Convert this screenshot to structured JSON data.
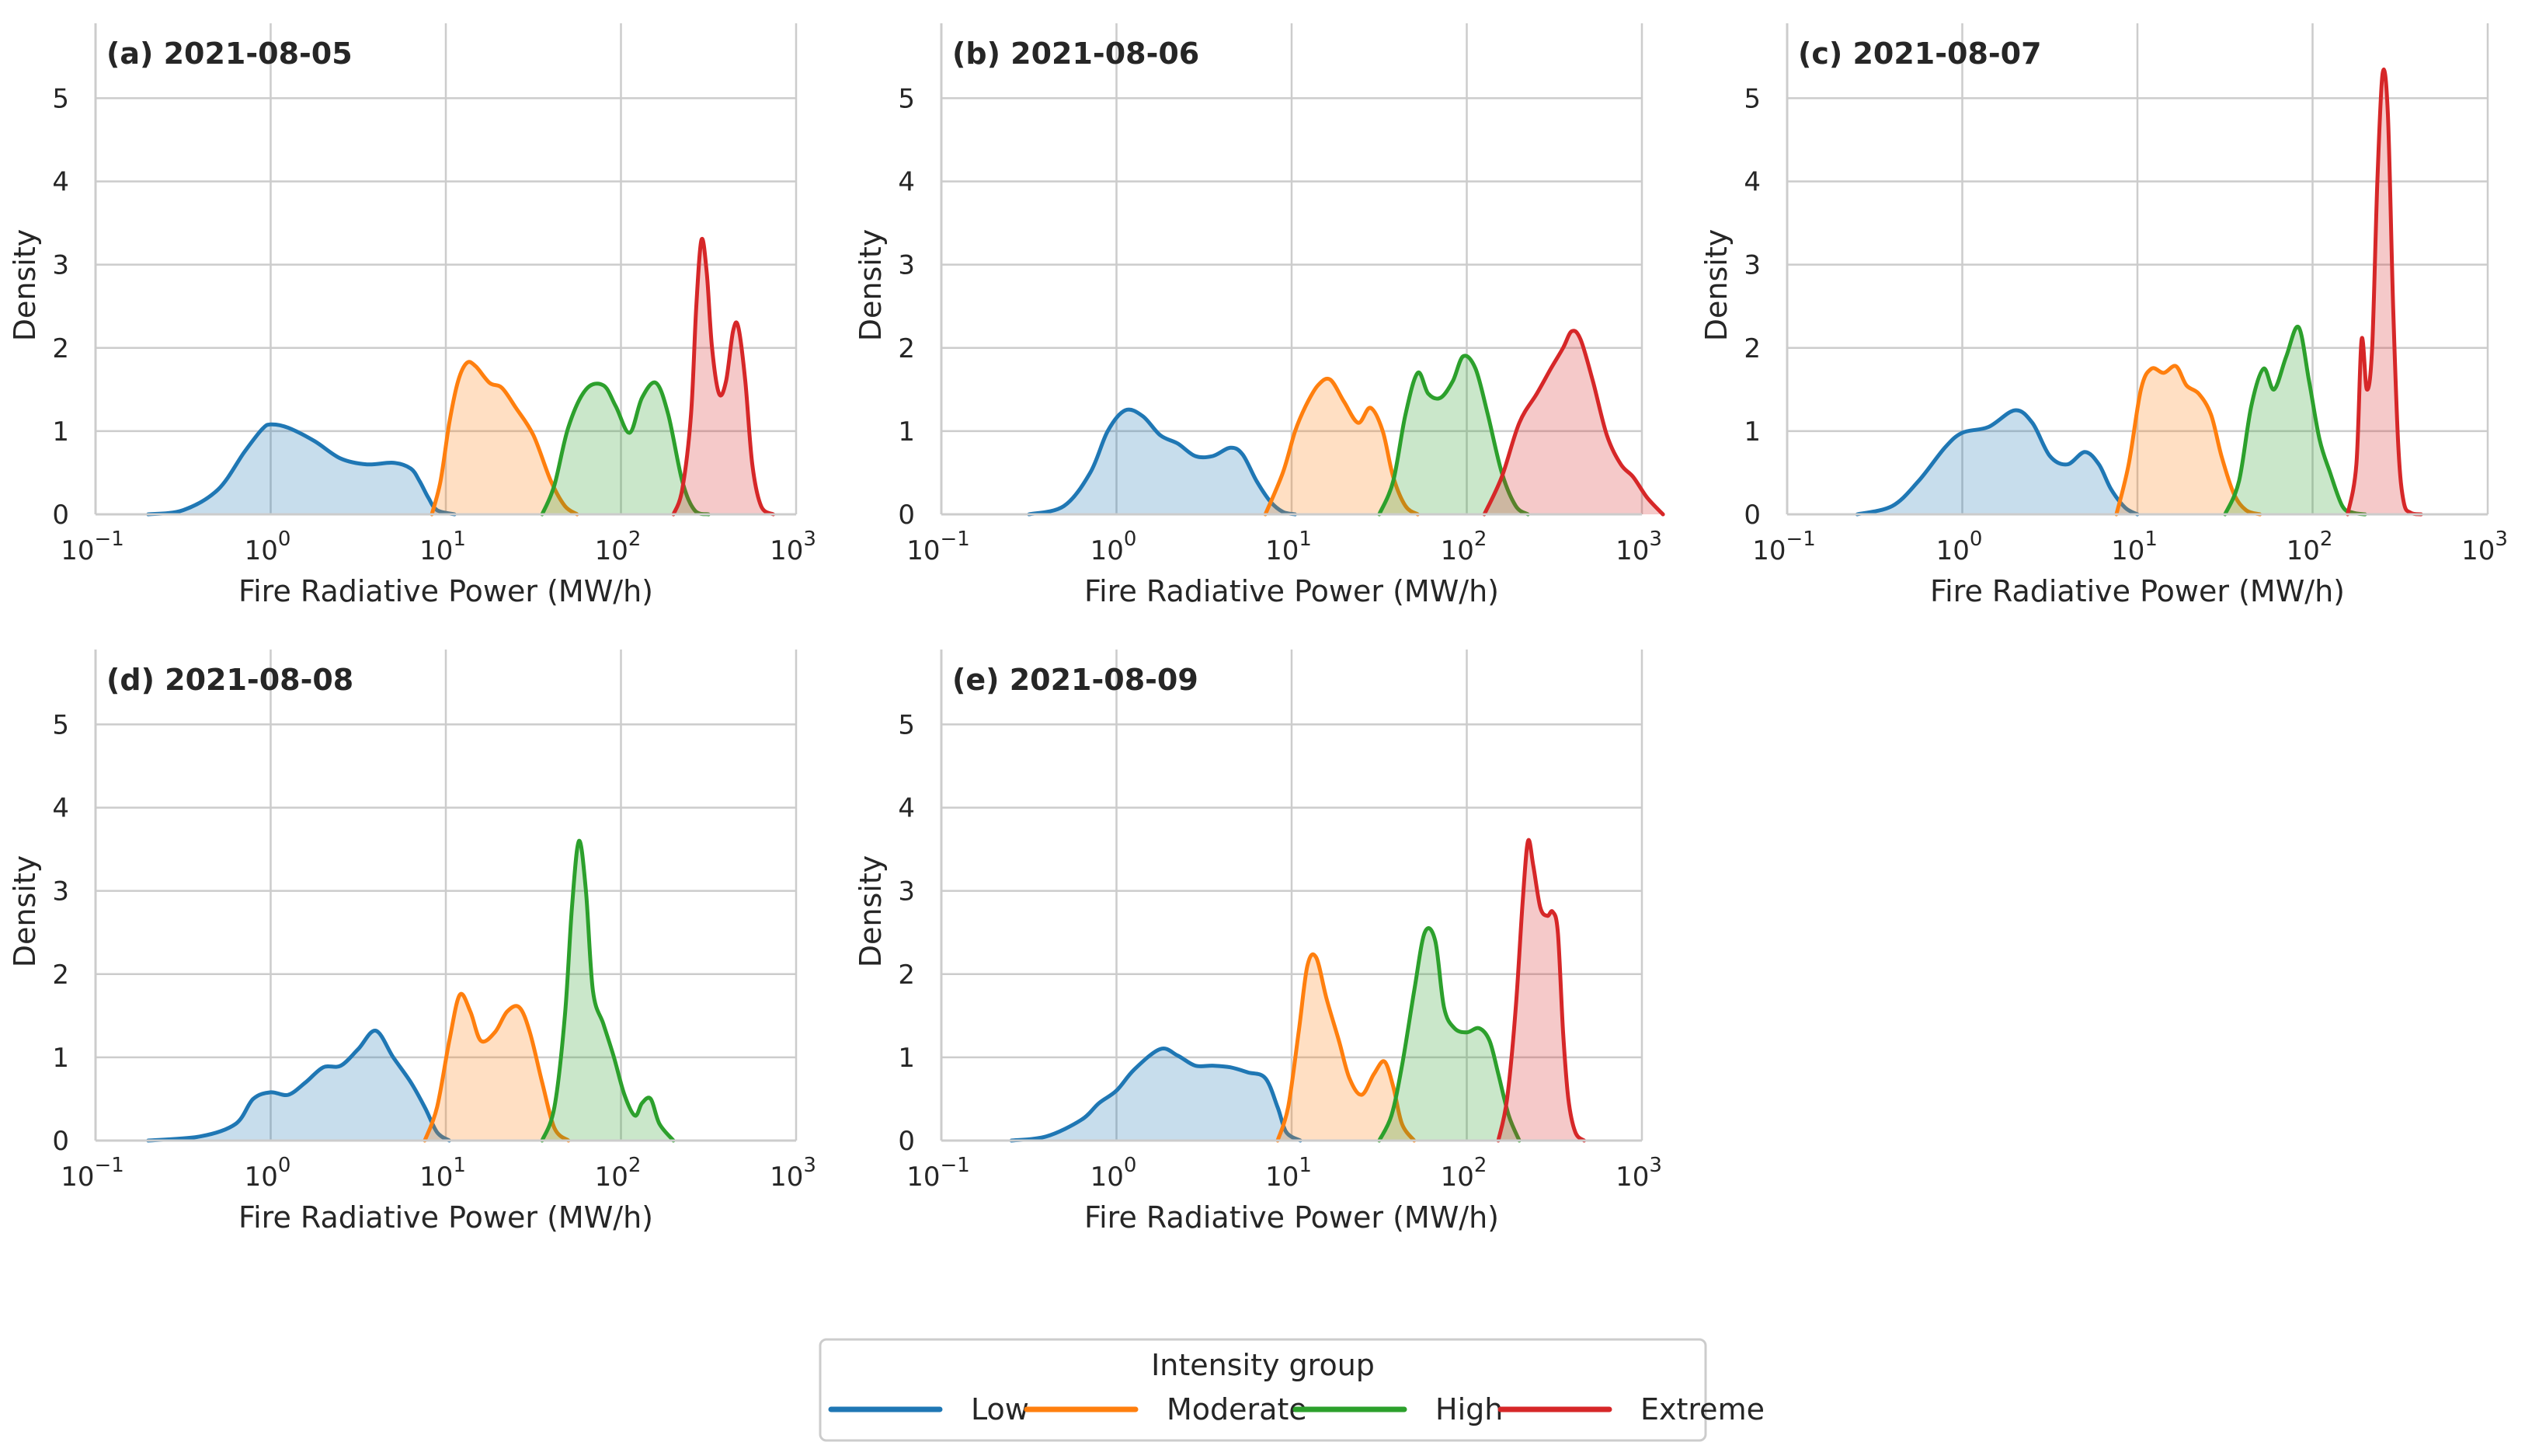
{
  "figure": {
    "legend_title": "Intensity group",
    "legend_position": "bottom-center",
    "colors": {
      "Low": "#1f77b4",
      "Moderate": "#ff7f0e",
      "High": "#2ca02c",
      "Extreme": "#d62728"
    }
  },
  "chart_data": [
    {
      "type": "area",
      "title": "(a) 2021-08-05",
      "xlabel": "Fire Radiative Power (MW/h)",
      "ylabel": "Density",
      "xscale": "log",
      "xlim": [
        -1,
        3
      ],
      "ylim": [
        0,
        5.9
      ],
      "xticks": [
        -1,
        0,
        1,
        2,
        3
      ],
      "xtick_labels": [
        "10",
        "10",
        "10",
        "10",
        "10"
      ],
      "xtick_exponents": [
        "−1",
        "0",
        "1",
        "2",
        "3"
      ],
      "yticks": [
        0,
        1,
        2,
        3,
        4,
        5
      ],
      "ytick_labels": [
        "0",
        "1",
        "2",
        "3",
        "4",
        "5"
      ],
      "grid": true,
      "series": [
        {
          "name": "Low",
          "x": [
            -0.7,
            -0.5,
            -0.3,
            -0.15,
            -0.05,
            0.0,
            0.1,
            0.25,
            0.4,
            0.55,
            0.7,
            0.8,
            0.85,
            0.9,
            0.95,
            1.05
          ],
          "y": [
            0.0,
            0.05,
            0.3,
            0.75,
            1.02,
            1.08,
            1.04,
            0.88,
            0.67,
            0.6,
            0.62,
            0.55,
            0.4,
            0.2,
            0.05,
            0.0
          ]
        },
        {
          "name": "Moderate",
          "x": [
            0.92,
            0.97,
            1.02,
            1.07,
            1.12,
            1.17,
            1.25,
            1.32,
            1.4,
            1.5,
            1.6,
            1.68,
            1.75
          ],
          "y": [
            0.0,
            0.4,
            1.1,
            1.6,
            1.82,
            1.78,
            1.58,
            1.52,
            1.28,
            0.95,
            0.4,
            0.1,
            0.0
          ]
        },
        {
          "name": "High",
          "x": [
            1.55,
            1.62,
            1.7,
            1.8,
            1.9,
            1.97,
            2.05,
            2.12,
            2.2,
            2.27,
            2.35,
            2.42,
            2.5
          ],
          "y": [
            0.0,
            0.35,
            1.05,
            1.5,
            1.55,
            1.3,
            0.98,
            1.4,
            1.58,
            1.2,
            0.4,
            0.05,
            0.0
          ]
        },
        {
          "name": "Extreme",
          "x": [
            2.3,
            2.35,
            2.4,
            2.43,
            2.46,
            2.49,
            2.52,
            2.56,
            2.6,
            2.64,
            2.67,
            2.71,
            2.75,
            2.8,
            2.87
          ],
          "y": [
            0.0,
            0.3,
            1.2,
            2.5,
            3.3,
            2.9,
            2.0,
            1.45,
            1.6,
            2.2,
            2.25,
            1.6,
            0.6,
            0.1,
            0.0
          ]
        }
      ]
    },
    {
      "type": "area",
      "title": "(b) 2021-08-06",
      "xlabel": "Fire Radiative Power (MW/h)",
      "ylabel": "Density",
      "xscale": "log",
      "xlim": [
        -1,
        3
      ],
      "ylim": [
        0,
        5.9
      ],
      "xticks": [
        -1,
        0,
        1,
        2,
        3
      ],
      "xtick_labels": [
        "10",
        "10",
        "10",
        "10",
        "10"
      ],
      "xtick_exponents": [
        "−1",
        "0",
        "1",
        "2",
        "3"
      ],
      "yticks": [
        0,
        1,
        2,
        3,
        4,
        5
      ],
      "ytick_labels": [
        "0",
        "1",
        "2",
        "3",
        "4",
        "5"
      ],
      "grid": true,
      "series": [
        {
          "name": "Low",
          "x": [
            -0.5,
            -0.3,
            -0.15,
            -0.05,
            0.05,
            0.15,
            0.25,
            0.35,
            0.45,
            0.55,
            0.65,
            0.72,
            0.8,
            0.88,
            0.95,
            1.02
          ],
          "y": [
            0.0,
            0.1,
            0.5,
            1.0,
            1.25,
            1.18,
            0.95,
            0.85,
            0.7,
            0.7,
            0.8,
            0.72,
            0.4,
            0.15,
            0.03,
            0.0
          ]
        },
        {
          "name": "Moderate",
          "x": [
            0.85,
            0.95,
            1.02,
            1.08,
            1.15,
            1.22,
            1.3,
            1.38,
            1.45,
            1.52,
            1.58,
            1.65,
            1.72
          ],
          "y": [
            0.0,
            0.5,
            1.0,
            1.3,
            1.55,
            1.62,
            1.35,
            1.1,
            1.28,
            1.0,
            0.45,
            0.1,
            0.0
          ]
        },
        {
          "name": "High",
          "x": [
            1.5,
            1.58,
            1.65,
            1.72,
            1.78,
            1.85,
            1.92,
            1.98,
            2.05,
            2.12,
            2.2,
            2.28,
            2.35
          ],
          "y": [
            0.0,
            0.4,
            1.2,
            1.7,
            1.45,
            1.4,
            1.6,
            1.9,
            1.75,
            1.2,
            0.5,
            0.1,
            0.0
          ]
        },
        {
          "name": "Extreme",
          "x": [
            2.1,
            2.2,
            2.3,
            2.4,
            2.48,
            2.55,
            2.6,
            2.65,
            2.72,
            2.8,
            2.88,
            2.95,
            3.03,
            3.12
          ],
          "y": [
            0.0,
            0.45,
            1.1,
            1.45,
            1.75,
            2.0,
            2.2,
            2.1,
            1.6,
            0.95,
            0.6,
            0.45,
            0.2,
            0.0
          ]
        }
      ]
    },
    {
      "type": "area",
      "title": "(c) 2021-08-07",
      "xlabel": "Fire Radiative Power (MW/h)",
      "ylabel": "Density",
      "xscale": "log",
      "xlim": [
        -1,
        3
      ],
      "ylim": [
        0,
        5.9
      ],
      "xticks": [
        -1,
        0,
        1,
        2,
        3
      ],
      "xtick_labels": [
        "10",
        "10",
        "10",
        "10",
        "10"
      ],
      "xtick_exponents": [
        "−1",
        "0",
        "1",
        "2",
        "3"
      ],
      "yticks": [
        0,
        1,
        2,
        3,
        4,
        5
      ],
      "ytick_labels": [
        "0",
        "1",
        "2",
        "3",
        "4",
        "5"
      ],
      "grid": true,
      "series": [
        {
          "name": "Low",
          "x": [
            -0.6,
            -0.4,
            -0.25,
            -0.1,
            0.0,
            0.15,
            0.3,
            0.4,
            0.5,
            0.6,
            0.7,
            0.78,
            0.85,
            0.93,
            1.0
          ],
          "y": [
            0.0,
            0.1,
            0.4,
            0.8,
            0.98,
            1.05,
            1.25,
            1.1,
            0.7,
            0.6,
            0.75,
            0.6,
            0.3,
            0.08,
            0.0
          ]
        },
        {
          "name": "Moderate",
          "x": [
            0.88,
            0.95,
            1.02,
            1.08,
            1.15,
            1.22,
            1.28,
            1.35,
            1.42,
            1.48,
            1.55,
            1.62,
            1.7
          ],
          "y": [
            0.0,
            0.6,
            1.5,
            1.75,
            1.7,
            1.78,
            1.55,
            1.45,
            1.2,
            0.7,
            0.25,
            0.05,
            0.0
          ]
        },
        {
          "name": "High",
          "x": [
            1.5,
            1.58,
            1.65,
            1.72,
            1.78,
            1.85,
            1.92,
            1.98,
            2.04,
            2.1,
            2.17,
            2.23,
            2.3
          ],
          "y": [
            0.0,
            0.4,
            1.3,
            1.75,
            1.5,
            1.9,
            2.25,
            1.6,
            0.9,
            0.5,
            0.1,
            0.02,
            0.0
          ]
        },
        {
          "name": "Extreme",
          "x": [
            2.2,
            2.25,
            2.28,
            2.31,
            2.34,
            2.37,
            2.4,
            2.43,
            2.46,
            2.49,
            2.52,
            2.56,
            2.62
          ],
          "y": [
            0.0,
            0.6,
            2.1,
            1.5,
            2.0,
            4.0,
            5.3,
            4.8,
            2.5,
            0.8,
            0.15,
            0.02,
            0.0
          ]
        }
      ]
    },
    {
      "type": "area",
      "title": "(d) 2021-08-08",
      "xlabel": "Fire Radiative Power (MW/h)",
      "ylabel": "Density",
      "xscale": "log",
      "xlim": [
        -1,
        3
      ],
      "ylim": [
        0,
        5.9
      ],
      "xticks": [
        -1,
        0,
        1,
        2,
        3
      ],
      "xtick_labels": [
        "10",
        "10",
        "10",
        "10",
        "10"
      ],
      "xtick_exponents": [
        "−1",
        "0",
        "1",
        "2",
        "3"
      ],
      "yticks": [
        0,
        1,
        2,
        3,
        4,
        5
      ],
      "ytick_labels": [
        "0",
        "1",
        "2",
        "3",
        "4",
        "5"
      ],
      "grid": true,
      "series": [
        {
          "name": "Low",
          "x": [
            -0.7,
            -0.4,
            -0.2,
            -0.1,
            0.0,
            0.1,
            0.2,
            0.3,
            0.4,
            0.5,
            0.6,
            0.7,
            0.8,
            0.88,
            0.95,
            1.02
          ],
          "y": [
            0.0,
            0.05,
            0.2,
            0.5,
            0.58,
            0.55,
            0.7,
            0.88,
            0.9,
            1.1,
            1.32,
            1.0,
            0.7,
            0.4,
            0.1,
            0.0
          ]
        },
        {
          "name": "Moderate",
          "x": [
            0.88,
            0.95,
            1.02,
            1.08,
            1.14,
            1.2,
            1.28,
            1.35,
            1.42,
            1.48,
            1.55,
            1.62,
            1.7
          ],
          "y": [
            0.0,
            0.4,
            1.2,
            1.75,
            1.55,
            1.2,
            1.3,
            1.55,
            1.6,
            1.3,
            0.7,
            0.15,
            0.0
          ]
        },
        {
          "name": "High",
          "x": [
            1.55,
            1.62,
            1.68,
            1.72,
            1.76,
            1.8,
            1.84,
            1.9,
            1.96,
            2.02,
            2.08,
            2.12,
            2.17,
            2.22,
            2.3
          ],
          "y": [
            0.0,
            0.4,
            1.5,
            2.8,
            3.6,
            3.0,
            1.8,
            1.4,
            1.0,
            0.55,
            0.3,
            0.45,
            0.5,
            0.2,
            0.0
          ]
        }
      ]
    },
    {
      "type": "area",
      "title": "(e) 2021-08-09",
      "xlabel": "Fire Radiative Power (MW/h)",
      "ylabel": "Density",
      "xscale": "log",
      "xlim": [
        -1,
        3
      ],
      "ylim": [
        0,
        5.9
      ],
      "xticks": [
        -1,
        0,
        1,
        2,
        3
      ],
      "xtick_labels": [
        "10",
        "10",
        "10",
        "10",
        "10"
      ],
      "xtick_exponents": [
        "−1",
        "0",
        "1",
        "2",
        "3"
      ],
      "yticks": [
        0,
        1,
        2,
        3,
        4,
        5
      ],
      "ytick_labels": [
        "0",
        "1",
        "2",
        "3",
        "4",
        "5"
      ],
      "grid": true,
      "series": [
        {
          "name": "Low",
          "x": [
            -0.6,
            -0.4,
            -0.2,
            -0.1,
            0.0,
            0.1,
            0.25,
            0.35,
            0.45,
            0.55,
            0.65,
            0.75,
            0.85,
            0.92,
            0.97,
            1.05
          ],
          "y": [
            0.0,
            0.05,
            0.25,
            0.45,
            0.6,
            0.85,
            1.1,
            1.02,
            0.9,
            0.9,
            0.88,
            0.82,
            0.75,
            0.4,
            0.1,
            0.0
          ]
        },
        {
          "name": "Moderate",
          "x": [
            0.92,
            0.98,
            1.04,
            1.09,
            1.14,
            1.2,
            1.27,
            1.33,
            1.4,
            1.47,
            1.53,
            1.58,
            1.63,
            1.7
          ],
          "y": [
            0.0,
            0.4,
            1.3,
            2.1,
            2.2,
            1.7,
            1.2,
            0.75,
            0.55,
            0.8,
            0.95,
            0.65,
            0.2,
            0.0
          ]
        },
        {
          "name": "High",
          "x": [
            1.5,
            1.57,
            1.63,
            1.7,
            1.76,
            1.82,
            1.87,
            1.93,
            2.0,
            2.07,
            2.13,
            2.18,
            2.24,
            2.3
          ],
          "y": [
            0.0,
            0.3,
            0.9,
            1.8,
            2.5,
            2.4,
            1.6,
            1.35,
            1.3,
            1.35,
            1.2,
            0.8,
            0.3,
            0.0
          ]
        },
        {
          "name": "Extreme",
          "x": [
            2.18,
            2.23,
            2.28,
            2.32,
            2.35,
            2.38,
            2.42,
            2.46,
            2.49,
            2.52,
            2.55,
            2.58,
            2.62,
            2.67
          ],
          "y": [
            0.0,
            0.5,
            1.6,
            2.9,
            3.6,
            3.3,
            2.8,
            2.7,
            2.75,
            2.5,
            1.3,
            0.5,
            0.1,
            0.0
          ]
        }
      ]
    }
  ]
}
